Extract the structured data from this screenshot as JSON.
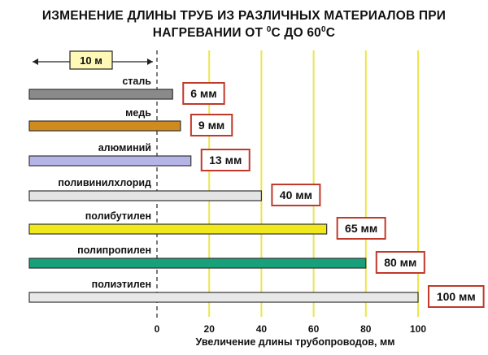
{
  "chart_data": {
    "type": "bar",
    "orientation": "horizontal",
    "title_parts": [
      "ИЗМЕНЕНИЕ ДЛИНЫ ТРУБ ИЗ РАЗЛИЧНЫХ МАТЕРИАЛОВ ПРИ",
      "НАГРЕВАНИИ ОТ ",
      "0",
      "0",
      "С ДО ",
      "60",
      "0",
      "С"
    ],
    "xlabel": "Увеличение длины трубопроводов, мм",
    "xlim": [
      0,
      100
    ],
    "xticks": [
      0,
      20,
      40,
      60,
      80,
      100
    ],
    "grid": "vertical",
    "scale_bar_label": "10 м",
    "categories": [
      "сталь",
      "медь",
      "алюминий",
      "поливинилхлорид",
      "полибутилен",
      "полипропилен",
      "полиэтилен"
    ],
    "values": [
      6,
      9,
      13,
      40,
      65,
      80,
      100
    ],
    "value_labels": [
      "6 мм",
      "9 мм",
      "13 мм",
      "40 мм",
      "65 мм",
      "80 мм",
      "100 мм"
    ],
    "colors": [
      "#8a8a8a",
      "#d08a1e",
      "#b4b4e6",
      "#e4e4e4",
      "#f0e81a",
      "#18a07a",
      "#e8e8e8"
    ]
  }
}
